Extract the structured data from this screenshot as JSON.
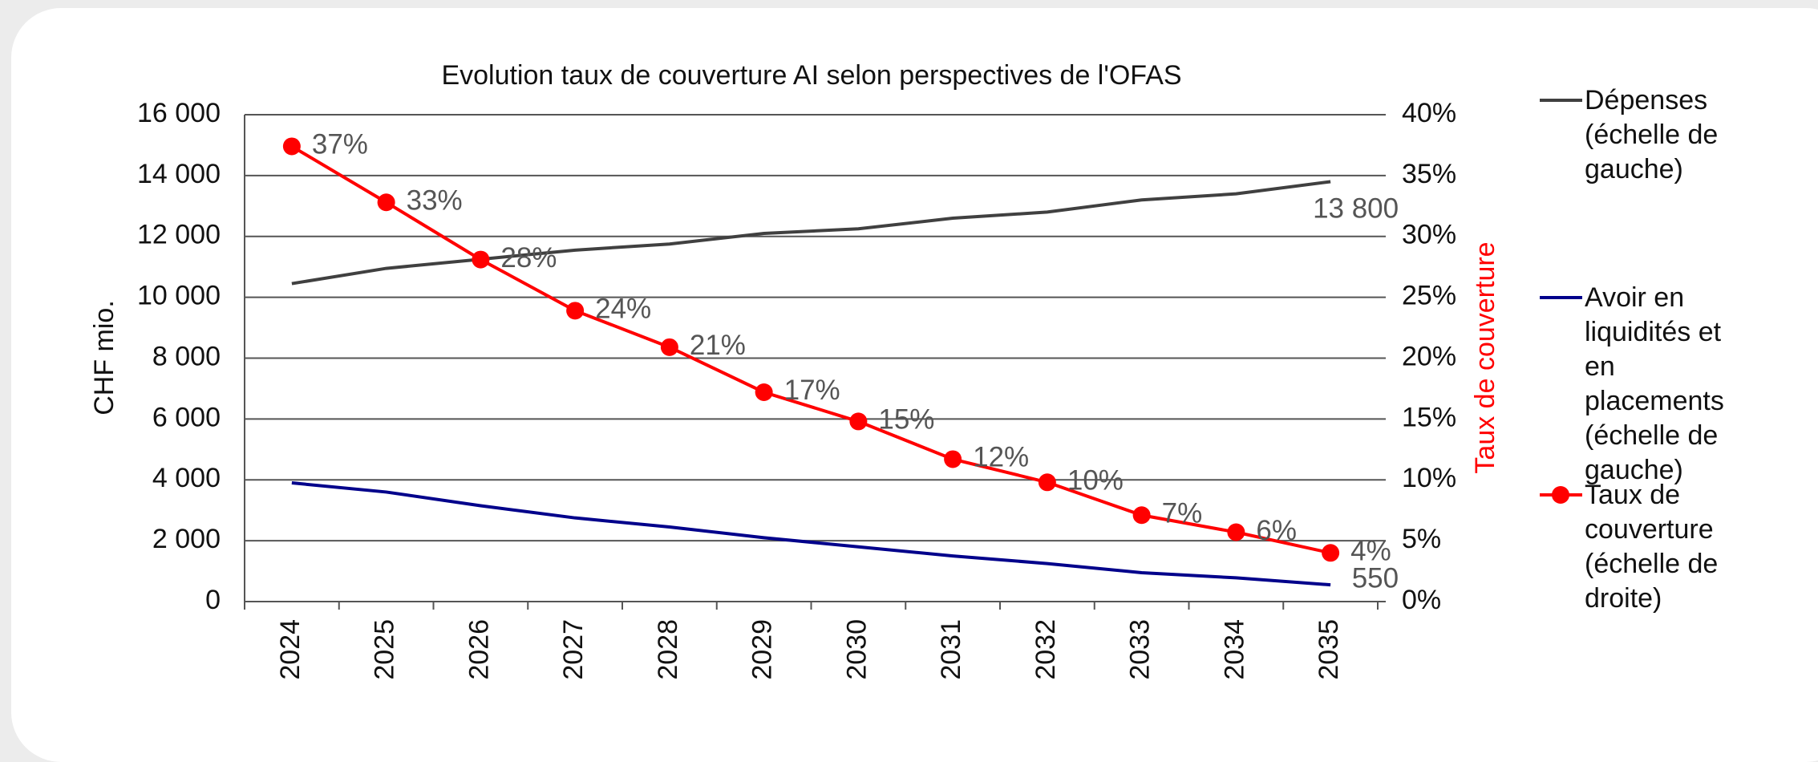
{
  "chart_data": {
    "type": "line",
    "title": "Evolution taux de couverture AI selon perspectives de l'OFAS",
    "ylabel": "CHF mio.",
    "y2label": "Taux de couverture",
    "categories": [
      "2024",
      "2025",
      "2026",
      "2027",
      "2028",
      "2029",
      "2030",
      "2031",
      "2032",
      "2033",
      "2034",
      "2035"
    ],
    "series": [
      {
        "name": "Dépenses (échelle de gauche)",
        "color": "#404040",
        "values": [
          10450,
          10950,
          11250,
          11550,
          11750,
          12100,
          12250,
          12600,
          12800,
          13200,
          13400,
          13800
        ],
        "value_labels": [
          null,
          null,
          null,
          null,
          null,
          null,
          null,
          null,
          null,
          null,
          null,
          "13 800"
        ]
      },
      {
        "name": "Avoir en liquidités et en placements (échelle de gauche)",
        "color": "#00008b",
        "values": [
          3900,
          3600,
          3150,
          2750,
          2450,
          2100,
          1800,
          1500,
          1250,
          950,
          780,
          550
        ],
        "value_labels": [
          null,
          null,
          null,
          null,
          null,
          null,
          null,
          null,
          null,
          null,
          null,
          "550"
        ]
      },
      {
        "name": "Taux de couverture (échelle de droite)",
        "color": "#ff0000",
        "axis": "y2",
        "markers": true,
        "values": [
          37.4,
          32.8,
          28.1,
          23.9,
          20.9,
          17.2,
          14.8,
          11.7,
          9.8,
          7.1,
          5.7,
          4.0
        ],
        "value_labels": [
          "37%",
          "33%",
          "28%",
          "24%",
          "21%",
          "17%",
          "15%",
          "12%",
          "10%",
          "7%",
          "6%",
          "4%"
        ]
      }
    ],
    "ylim": [
      0,
      16000
    ],
    "yticks": [
      0,
      {
        "value": 2000,
        "label": "2 000"
      },
      {
        "value": 4000,
        "label": "4 000"
      },
      {
        "value": 6000,
        "label": "6 000"
      },
      {
        "value": 8000,
        "label": "8 000"
      },
      {
        "value": 10000,
        "label": "10 000"
      },
      {
        "value": 12000,
        "label": "12 000"
      },
      {
        "value": 14000,
        "label": "14 000"
      },
      {
        "value": 16000,
        "label": "16 000"
      }
    ],
    "y2lim": [
      0,
      40
    ],
    "y2ticks": [
      {
        "value": 0,
        "label": "0%"
      },
      {
        "value": 5,
        "label": "5%"
      },
      {
        "value": 10,
        "label": "10%"
      },
      {
        "value": 15,
        "label": "15%"
      },
      {
        "value": 20,
        "label": "20%"
      },
      {
        "value": 25,
        "label": "25%"
      },
      {
        "value": 30,
        "label": "30%"
      },
      {
        "value": 35,
        "label": "35%"
      },
      {
        "value": 40,
        "label": "40%"
      }
    ],
    "grid": true,
    "legend": "right"
  }
}
